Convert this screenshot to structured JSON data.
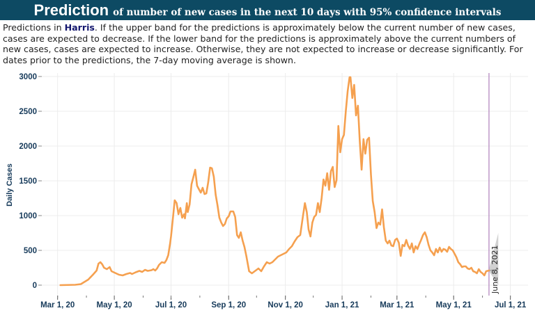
{
  "title": {
    "main": "Prediction",
    "sub": "of number of new cases in the next 10 days with 95% confidence intervals"
  },
  "description": {
    "prefix": "Predictions in ",
    "county": "Harris",
    "suffix": ". If the upper band for the predictions is approximately below the current number of new cases, cases are expected to decrease. If the lower band for the predictions is approximately above the current numbers of new cases, cases are expected to increase. Otherwise, they are not expected to increase or decrease significantly. For dates prior to the predictions, the 7-day moving average is shown."
  },
  "chart_data": {
    "type": "line",
    "ylabel": "Daily Cases",
    "xlabel": "",
    "ylim": [
      -150,
      3050
    ],
    "yticks": [
      0,
      500,
      1000,
      1500,
      2000,
      2500,
      3000
    ],
    "ytick_labels": [
      "0",
      "500",
      "1000",
      "1500",
      "2000",
      "2500",
      "3000"
    ],
    "xticks": [
      {
        "date": "2020-03-01",
        "label": "Mar 1, 20"
      },
      {
        "date": "2020-05-01",
        "label": "May 1, 20"
      },
      {
        "date": "2020-07-01",
        "label": "Jul 1, 20"
      },
      {
        "date": "2020-09-01",
        "label": "Sep 1, 20"
      },
      {
        "date": "2020-11-01",
        "label": "Nov 1, 20"
      },
      {
        "date": "2021-01-01",
        "label": "Jan 1, 21"
      },
      {
        "date": "2021-03-01",
        "label": "Mar 1, 21"
      },
      {
        "date": "2021-05-01",
        "label": "May 1, 21"
      },
      {
        "date": "2021-07-01",
        "label": "Jul 1, 21"
      }
    ],
    "xlim": [
      "2020-02-13",
      "2021-07-20"
    ],
    "grid": true,
    "line_color": "#f5a04f",
    "band_color": "#c9c9c9",
    "marker_color": "#b589c0",
    "prediction_date": "2021-06-08",
    "prediction_label": "June 8, 2021",
    "series": [
      {
        "values": [
          [
            "2020-03-04",
            0
          ],
          [
            "2020-03-20",
            5
          ],
          [
            "2020-03-26",
            15
          ],
          [
            "2020-04-03",
            80
          ],
          [
            "2020-04-08",
            150
          ],
          [
            "2020-04-12",
            210
          ],
          [
            "2020-04-14",
            310
          ],
          [
            "2020-04-16",
            330
          ],
          [
            "2020-04-18",
            300
          ],
          [
            "2020-04-20",
            250
          ],
          [
            "2020-04-23",
            230
          ],
          [
            "2020-04-26",
            260
          ],
          [
            "2020-04-28",
            200
          ],
          [
            "2020-05-02",
            175
          ],
          [
            "2020-05-06",
            150
          ],
          [
            "2020-05-10",
            140
          ],
          [
            "2020-05-14",
            160
          ],
          [
            "2020-05-18",
            175
          ],
          [
            "2020-05-20",
            160
          ],
          [
            "2020-05-24",
            185
          ],
          [
            "2020-05-28",
            205
          ],
          [
            "2020-05-31",
            190
          ],
          [
            "2020-06-03",
            220
          ],
          [
            "2020-06-06",
            205
          ],
          [
            "2020-06-10",
            215
          ],
          [
            "2020-06-12",
            230
          ],
          [
            "2020-06-14",
            210
          ],
          [
            "2020-06-16",
            240
          ],
          [
            "2020-06-18",
            290
          ],
          [
            "2020-06-21",
            330
          ],
          [
            "2020-06-24",
            320
          ],
          [
            "2020-06-26",
            360
          ],
          [
            "2020-06-28",
            430
          ],
          [
            "2020-06-30",
            600
          ],
          [
            "2020-07-01",
            700
          ],
          [
            "2020-07-03",
            960
          ],
          [
            "2020-07-05",
            1220
          ],
          [
            "2020-07-07",
            1180
          ],
          [
            "2020-07-09",
            1020
          ],
          [
            "2020-07-11",
            1110
          ],
          [
            "2020-07-13",
            970
          ],
          [
            "2020-07-15",
            1020
          ],
          [
            "2020-07-16",
            960
          ],
          [
            "2020-07-18",
            1180
          ],
          [
            "2020-07-19",
            1050
          ],
          [
            "2020-07-21",
            1160
          ],
          [
            "2020-07-23",
            1450
          ],
          [
            "2020-07-25",
            1550
          ],
          [
            "2020-07-27",
            1660
          ],
          [
            "2020-07-29",
            1430
          ],
          [
            "2020-07-31",
            1380
          ],
          [
            "2020-08-02",
            1330
          ],
          [
            "2020-08-04",
            1400
          ],
          [
            "2020-08-06",
            1310
          ],
          [
            "2020-08-08",
            1320
          ],
          [
            "2020-08-10",
            1480
          ],
          [
            "2020-08-12",
            1690
          ],
          [
            "2020-08-14",
            1680
          ],
          [
            "2020-08-16",
            1560
          ],
          [
            "2020-08-18",
            1300
          ],
          [
            "2020-08-20",
            1150
          ],
          [
            "2020-08-22",
            970
          ],
          [
            "2020-08-24",
            900
          ],
          [
            "2020-08-26",
            850
          ],
          [
            "2020-08-28",
            880
          ],
          [
            "2020-08-30",
            960
          ],
          [
            "2020-09-01",
            990
          ],
          [
            "2020-09-03",
            1060
          ],
          [
            "2020-09-06",
            1060
          ],
          [
            "2020-09-08",
            980
          ],
          [
            "2020-09-10",
            720
          ],
          [
            "2020-09-12",
            680
          ],
          [
            "2020-09-14",
            760
          ],
          [
            "2020-09-16",
            640
          ],
          [
            "2020-09-18",
            550
          ],
          [
            "2020-09-20",
            420
          ],
          [
            "2020-09-23",
            200
          ],
          [
            "2020-09-26",
            170
          ],
          [
            "2020-09-30",
            210
          ],
          [
            "2020-10-03",
            240
          ],
          [
            "2020-10-06",
            200
          ],
          [
            "2020-10-09",
            270
          ],
          [
            "2020-10-12",
            330
          ],
          [
            "2020-10-15",
            310
          ],
          [
            "2020-10-18",
            330
          ],
          [
            "2020-10-21",
            370
          ],
          [
            "2020-10-24",
            410
          ],
          [
            "2020-10-27",
            430
          ],
          [
            "2020-10-30",
            450
          ],
          [
            "2020-11-02",
            470
          ],
          [
            "2020-11-05",
            520
          ],
          [
            "2020-11-08",
            560
          ],
          [
            "2020-11-11",
            630
          ],
          [
            "2020-11-14",
            690
          ],
          [
            "2020-11-17",
            720
          ],
          [
            "2020-11-20",
            1000
          ],
          [
            "2020-11-22",
            1180
          ],
          [
            "2020-11-24",
            1050
          ],
          [
            "2020-11-26",
            800
          ],
          [
            "2020-11-28",
            700
          ],
          [
            "2020-11-30",
            900
          ],
          [
            "2020-12-02",
            980
          ],
          [
            "2020-12-04",
            1010
          ],
          [
            "2020-12-06",
            1180
          ],
          [
            "2020-12-08",
            1050
          ],
          [
            "2020-12-10",
            1250
          ],
          [
            "2020-12-12",
            1520
          ],
          [
            "2020-12-14",
            1430
          ],
          [
            "2020-12-16",
            1610
          ],
          [
            "2020-12-18",
            1370
          ],
          [
            "2020-12-20",
            1640
          ],
          [
            "2020-12-22",
            1700
          ],
          [
            "2020-12-24",
            1410
          ],
          [
            "2020-12-26",
            1510
          ],
          [
            "2020-12-28",
            2290
          ],
          [
            "2020-12-30",
            1910
          ],
          [
            "2021-01-01",
            2100
          ],
          [
            "2021-01-03",
            2160
          ],
          [
            "2021-01-05",
            2500
          ],
          [
            "2021-01-07",
            2790
          ],
          [
            "2021-01-09",
            2990
          ],
          [
            "2021-01-10",
            2990
          ],
          [
            "2021-01-12",
            2690
          ],
          [
            "2021-01-14",
            2880
          ],
          [
            "2021-01-16",
            2440
          ],
          [
            "2021-01-18",
            2580
          ],
          [
            "2021-01-20",
            2080
          ],
          [
            "2021-01-22",
            1660
          ],
          [
            "2021-01-24",
            2100
          ],
          [
            "2021-01-26",
            1890
          ],
          [
            "2021-01-28",
            2090
          ],
          [
            "2021-01-30",
            2120
          ],
          [
            "2021-02-01",
            1590
          ],
          [
            "2021-02-03",
            1210
          ],
          [
            "2021-02-05",
            1050
          ],
          [
            "2021-02-07",
            820
          ],
          [
            "2021-02-09",
            900
          ],
          [
            "2021-02-11",
            870
          ],
          [
            "2021-02-13",
            1090
          ],
          [
            "2021-02-15",
            830
          ],
          [
            "2021-02-17",
            640
          ],
          [
            "2021-02-19",
            600
          ],
          [
            "2021-02-21",
            640
          ],
          [
            "2021-02-23",
            570
          ],
          [
            "2021-02-25",
            560
          ],
          [
            "2021-02-27",
            650
          ],
          [
            "2021-03-01",
            670
          ],
          [
            "2021-03-03",
            610
          ],
          [
            "2021-03-05",
            420
          ],
          [
            "2021-03-07",
            580
          ],
          [
            "2021-03-09",
            560
          ],
          [
            "2021-03-11",
            650
          ],
          [
            "2021-03-13",
            570
          ],
          [
            "2021-03-15",
            520
          ],
          [
            "2021-03-17",
            600
          ],
          [
            "2021-03-19",
            470
          ],
          [
            "2021-03-21",
            560
          ],
          [
            "2021-03-23",
            520
          ],
          [
            "2021-03-25",
            590
          ],
          [
            "2021-03-27",
            650
          ],
          [
            "2021-03-29",
            720
          ],
          [
            "2021-03-31",
            760
          ],
          [
            "2021-04-02",
            690
          ],
          [
            "2021-04-04",
            580
          ],
          [
            "2021-04-06",
            500
          ],
          [
            "2021-04-08",
            470
          ],
          [
            "2021-04-10",
            430
          ],
          [
            "2021-04-12",
            520
          ],
          [
            "2021-04-14",
            470
          ],
          [
            "2021-04-16",
            540
          ],
          [
            "2021-04-18",
            480
          ],
          [
            "2021-04-20",
            520
          ],
          [
            "2021-04-22",
            510
          ],
          [
            "2021-04-24",
            480
          ],
          [
            "2021-04-26",
            550
          ],
          [
            "2021-04-28",
            520
          ],
          [
            "2021-04-30",
            500
          ],
          [
            "2021-05-02",
            450
          ],
          [
            "2021-05-04",
            400
          ],
          [
            "2021-05-06",
            330
          ],
          [
            "2021-05-08",
            300
          ],
          [
            "2021-05-10",
            260
          ],
          [
            "2021-05-12",
            270
          ],
          [
            "2021-05-14",
            270
          ],
          [
            "2021-05-16",
            240
          ],
          [
            "2021-05-18",
            230
          ],
          [
            "2021-05-20",
            250
          ],
          [
            "2021-05-22",
            200
          ],
          [
            "2021-05-24",
            190
          ],
          [
            "2021-05-26",
            170
          ],
          [
            "2021-05-28",
            230
          ],
          [
            "2021-05-30",
            190
          ],
          [
            "2021-06-01",
            170
          ],
          [
            "2021-06-03",
            140
          ],
          [
            "2021-06-05",
            200
          ],
          [
            "2021-06-08",
            210
          ]
        ]
      }
    ],
    "prediction_band": {
      "start": "2021-06-08",
      "end": "2021-06-18",
      "lower": [
        200,
        0
      ],
      "upper": [
        230,
        750
      ],
      "median": [
        210,
        230
      ]
    }
  }
}
